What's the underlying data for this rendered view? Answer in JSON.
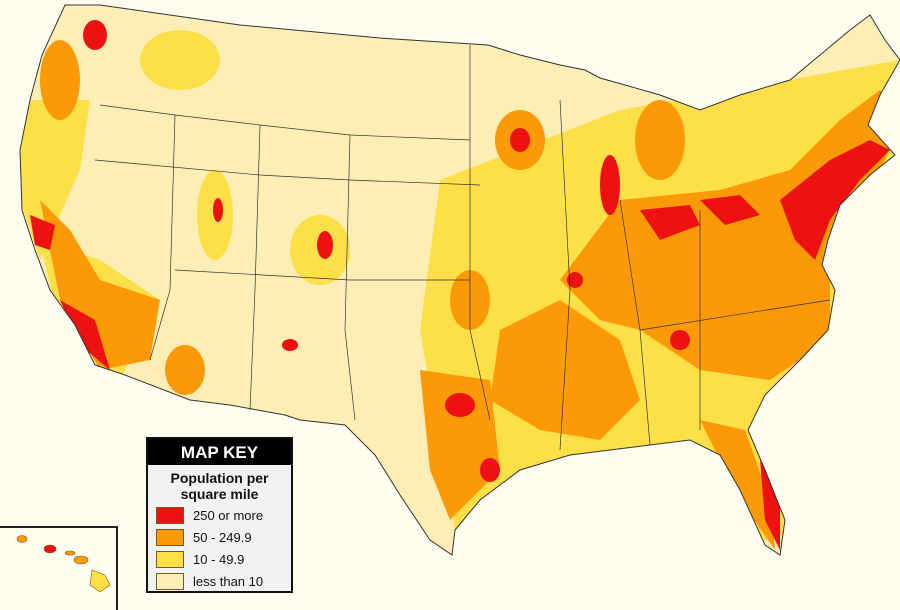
{
  "map_key": {
    "title": "MAP KEY",
    "subtitle_line1": "Population per",
    "subtitle_line2": "square mile",
    "categories": [
      {
        "label": "250 or more",
        "color": "#ee1111"
      },
      {
        "label": "50 - 249.9",
        "color": "#fb9a06"
      },
      {
        "label": "10 - 49.9",
        "color": "#fde047"
      },
      {
        "label": "less than 10",
        "color": "#fdeeb5"
      }
    ]
  },
  "colors": {
    "background": "#fffdf0",
    "border": "#333333"
  }
}
